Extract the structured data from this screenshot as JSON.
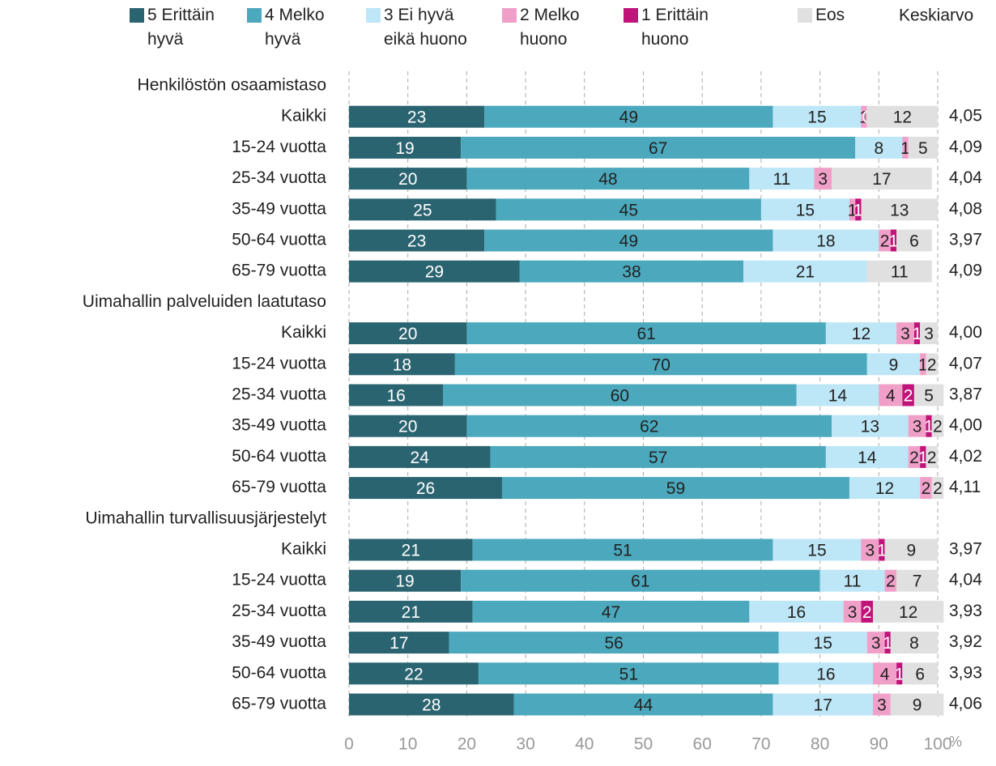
{
  "chart_data": {
    "type": "stacked-bar-horizontal",
    "categories": [
      "Henkilöstön osaamistaso",
      "Kaikki",
      "15-24 vuotta",
      "25-34 vuotta",
      "35-49 vuotta",
      "50-64 vuotta",
      "65-79 vuotta",
      "Uimahallin palveluiden laatutaso",
      "Kaikki",
      "15-24 vuotta",
      "25-34 vuotta",
      "35-49 vuotta",
      "50-64 vuotta",
      "65-79 vuotta",
      "Uimahallin turvallisuusjärjestelyt",
      "Kaikki",
      "15-24 vuotta",
      "25-34 vuotta",
      "35-49 vuotta",
      "50-64 vuotta",
      "65-79 vuotta"
    ],
    "series": [
      {
        "name": "5 Erittäin hyvä",
        "color": "#2a6470",
        "label_color": "#ffffff",
        "values": [
          null,
          23,
          19,
          20,
          25,
          23,
          29,
          null,
          20,
          18,
          16,
          20,
          24,
          26,
          null,
          21,
          19,
          21,
          17,
          22,
          28
        ]
      },
      {
        "name": "4 Melko hyvä",
        "color": "#4ba8bd",
        "label_color": "#222222",
        "values": [
          null,
          49,
          67,
          48,
          45,
          49,
          38,
          null,
          61,
          70,
          60,
          62,
          57,
          59,
          null,
          51,
          61,
          47,
          56,
          51,
          44
        ]
      },
      {
        "name": "3 Ei hyvä eikä huono",
        "color": "#bde6f7",
        "label_color": "#222222",
        "values": [
          null,
          15,
          8,
          11,
          15,
          18,
          21,
          null,
          12,
          9,
          14,
          13,
          14,
          12,
          null,
          15,
          11,
          16,
          15,
          16,
          17
        ]
      },
      {
        "name": "2 Melko huono",
        "color": "#f0a0c8",
        "label_color": "#222222",
        "values": [
          null,
          1,
          1,
          3,
          1,
          2,
          null,
          null,
          3,
          1,
          4,
          3,
          2,
          2,
          null,
          3,
          2,
          3,
          3,
          4,
          3
        ]
      },
      {
        "name": "1 Erittäin huono",
        "color": "#c0147a",
        "label_color": "#ffffff",
        "values": [
          null,
          0,
          null,
          null,
          1,
          1,
          null,
          null,
          1,
          null,
          2,
          1,
          1,
          null,
          null,
          1,
          null,
          2,
          1,
          1,
          null
        ]
      },
      {
        "name": "Eos",
        "color": "#e0e0e0",
        "label_color": "#222222",
        "values": [
          null,
          12,
          5,
          17,
          13,
          6,
          11,
          null,
          3,
          2,
          5,
          2,
          2,
          2,
          null,
          9,
          7,
          12,
          8,
          6,
          9
        ]
      }
    ],
    "average_label": "Keskiarvo",
    "averages": [
      null,
      4.05,
      4.09,
      4.04,
      4.08,
      3.97,
      4.09,
      null,
      4.0,
      4.07,
      3.87,
      4.0,
      4.02,
      4.11,
      null,
      3.97,
      4.04,
      3.93,
      3.92,
      3.93,
      4.06
    ],
    "averages_value_labels": [
      null,
      "4,05",
      "4,09",
      "4,04",
      "4,08",
      "3,97",
      "4,09",
      null,
      "4,00",
      "4,07",
      "3,87",
      "4,00",
      "4,02",
      "4,11",
      null,
      "3,97",
      "4,04",
      "3,93",
      "3,92",
      "3,93",
      "4,06"
    ],
    "x_unit": "%",
    "xlim": [
      0,
      100
    ],
    "xticks": [
      0,
      10,
      20,
      30,
      40,
      50,
      60,
      70,
      80,
      90,
      100
    ],
    "grid": true
  }
}
